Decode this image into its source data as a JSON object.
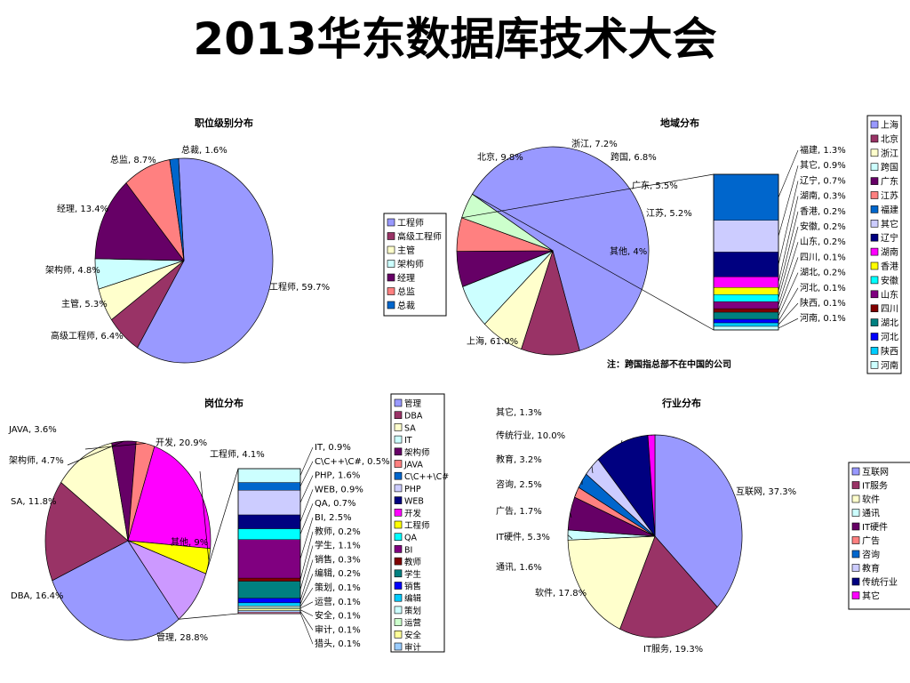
{
  "slide": {
    "title": "2013华东数据库技术大会"
  },
  "chart_data": [
    {
      "id": "level",
      "type": "pie",
      "title": "职位级别分布",
      "slices": [
        {
          "label": "工程师",
          "value": 59.7,
          "color": "#9999FF"
        },
        {
          "label": "高级工程师",
          "value": 6.4,
          "color": "#993366"
        },
        {
          "label": "主管",
          "value": 5.3,
          "color": "#FFFFCC"
        },
        {
          "label": "架构师",
          "value": 4.8,
          "color": "#CCFFFF"
        },
        {
          "label": "经理",
          "value": 13.4,
          "color": "#660066"
        },
        {
          "label": "总监",
          "value": 8.7,
          "color": "#FF8080"
        },
        {
          "label": "总裁",
          "value": 1.6,
          "color": "#0066CC"
        }
      ],
      "data_labels": [
        "工程师, 59.7%",
        "高级工程师, 6.4%",
        "主管, 5.3%",
        "架构师, 4.8%",
        "经理, 13.4%",
        "总监, 8.7%",
        "总裁, 1.6%"
      ],
      "legend": [
        "工程师",
        "高级工程师",
        "主管",
        "架构师",
        "经理",
        "总监",
        "总裁"
      ]
    },
    {
      "id": "region",
      "type": "pie",
      "title": "地域分布",
      "slices": [
        {
          "label": "上海",
          "value": 61.0,
          "color": "#9999FF"
        },
        {
          "label": "北京",
          "value": 9.8,
          "color": "#993366"
        },
        {
          "label": "浙江",
          "value": 7.2,
          "color": "#FFFFCC"
        },
        {
          "label": "跨国",
          "value": 6.8,
          "color": "#CCFFFF"
        },
        {
          "label": "广东",
          "value": 5.5,
          "color": "#660066"
        },
        {
          "label": "江苏",
          "value": 5.2,
          "color": "#FF8080"
        },
        {
          "label": "其他",
          "value": 4,
          "color": "#CCFFCC"
        }
      ],
      "data_labels": [
        "上海, 61.0%",
        "北京, 9.8%",
        "浙江, 7.2%",
        "跨国, 6.8%",
        "广东, 5.5%",
        "江苏, 5.2%",
        "其他, 4%"
      ],
      "breakdown": [
        {
          "label": "福建",
          "value": 1.3,
          "color": "#0066CC"
        },
        {
          "label": "其它",
          "value": 0.9,
          "color": "#CCCCFF"
        },
        {
          "label": "辽宁",
          "value": 0.7,
          "color": "#000080"
        },
        {
          "label": "湖南",
          "value": 0.3,
          "color": "#FF00FF"
        },
        {
          "label": "香港",
          "value": 0.2,
          "color": "#FFFF00"
        },
        {
          "label": "安徽",
          "value": 0.2,
          "color": "#00FFFF"
        },
        {
          "label": "山东",
          "value": 0.2,
          "color": "#800080"
        },
        {
          "label": "四川",
          "value": 0.1,
          "color": "#800000"
        },
        {
          "label": "湖北",
          "value": 0.2,
          "color": "#008080"
        },
        {
          "label": "河北",
          "value": 0.1,
          "color": "#0000FF"
        },
        {
          "label": "陕西",
          "value": 0.1,
          "color": "#00CCFF"
        },
        {
          "label": "河南",
          "value": 0.1,
          "color": "#CCFFFF"
        }
      ],
      "breakdown_labels": [
        "福建, 1.3%",
        "其它, 0.9%",
        "辽宁, 0.7%",
        "湖南, 0.3%",
        "香港, 0.2%",
        "安徽, 0.2%",
        "山东, 0.2%",
        "四川, 0.1%",
        "湖北, 0.2%",
        "河北, 0.1%",
        "陕西, 0.1%",
        "河南, 0.1%"
      ],
      "legend": [
        "上海",
        "北京",
        "浙江",
        "跨国",
        "广东",
        "江苏",
        "福建",
        "其它",
        "辽宁",
        "湖南",
        "香港",
        "安徽",
        "山东",
        "四川",
        "湖北",
        "河北",
        "陕西",
        "河南"
      ],
      "note": "注：跨国指总部不在中国的公司"
    },
    {
      "id": "role",
      "type": "pie",
      "title": "岗位分布",
      "slices": [
        {
          "label": "管理",
          "value": 28.8,
          "color": "#9999FF"
        },
        {
          "label": "DBA",
          "value": 16.4,
          "color": "#993366"
        },
        {
          "label": "SA",
          "value": 11.8,
          "color": "#FFFFCC"
        },
        {
          "label": "架构师",
          "value": 4.7,
          "color": "#660066"
        },
        {
          "label": "JAVA",
          "value": 3.6,
          "color": "#FF8080"
        },
        {
          "label": "开发",
          "value": 20.9,
          "color": "#FF00FF"
        },
        {
          "label": "工程师",
          "value": 4.1,
          "color": "#FFFF00"
        },
        {
          "label": "其他",
          "value": 9,
          "color": "#CC99FF"
        }
      ],
      "data_labels": [
        "管理, 28.8%",
        "DBA, 16.4%",
        "SA, 11.8%",
        "架构师, 4.7%",
        "JAVA, 3.6%",
        "开发, 20.9%",
        "工程师, 4.1%",
        "其他, 9%"
      ],
      "breakdown": [
        {
          "label": "IT",
          "value": 0.9,
          "color": "#CCFFFF"
        },
        {
          "label": "C\\C++\\C#",
          "value": 0.5,
          "color": "#0066CC"
        },
        {
          "label": "PHP",
          "value": 1.6,
          "color": "#CCCCFF"
        },
        {
          "label": "WEB",
          "value": 0.9,
          "color": "#000080"
        },
        {
          "label": "QA",
          "value": 0.7,
          "color": "#00FFFF"
        },
        {
          "label": "BI",
          "value": 2.5,
          "color": "#800080"
        },
        {
          "label": "教师",
          "value": 0.2,
          "color": "#800000"
        },
        {
          "label": "学生",
          "value": 1.1,
          "color": "#008080"
        },
        {
          "label": "销售",
          "value": 0.3,
          "color": "#0000FF"
        },
        {
          "label": "编辑",
          "value": 0.2,
          "color": "#00CCFF"
        },
        {
          "label": "策划",
          "value": 0.1,
          "color": "#CCFFFF"
        },
        {
          "label": "运营",
          "value": 0.1,
          "color": "#CCFFCC"
        },
        {
          "label": "安全",
          "value": 0.1,
          "color": "#FFFF99"
        },
        {
          "label": "审计",
          "value": 0.1,
          "color": "#99CCFF"
        },
        {
          "label": "猎头",
          "value": 0.1,
          "color": "#FF99CC"
        }
      ],
      "breakdown_labels": [
        "IT, 0.9%",
        "C\\C++\\C#, 0.5%",
        "PHP, 1.6%",
        "WEB, 0.9%",
        "QA, 0.7%",
        "BI, 2.5%",
        "教师, 0.2%",
        "学生, 1.1%",
        "销售, 0.3%",
        "编辑, 0.2%",
        "策划, 0.1%",
        "运营, 0.1%",
        "安全, 0.1%",
        "审计, 0.1%",
        "猎头, 0.1%"
      ],
      "legend": [
        "管理",
        "DBA",
        "SA",
        "IT",
        "架构师",
        "JAVA",
        "C\\C++\\C#",
        "PHP",
        "WEB",
        "开发",
        "工程师",
        "QA",
        "BI",
        "教师",
        "学生",
        "销售",
        "编辑",
        "策划",
        "运营",
        "安全",
        "审计"
      ]
    },
    {
      "id": "industry",
      "type": "pie",
      "title": "行业分布",
      "slices": [
        {
          "label": "互联网",
          "value": 37.3,
          "color": "#9999FF"
        },
        {
          "label": "IT服务",
          "value": 19.3,
          "color": "#993366"
        },
        {
          "label": "软件",
          "value": 17.8,
          "color": "#FFFFCC"
        },
        {
          "label": "通讯",
          "value": 1.6,
          "color": "#CCFFFF"
        },
        {
          "label": "IT硬件",
          "value": 5.3,
          "color": "#660066"
        },
        {
          "label": "广告",
          "value": 1.7,
          "color": "#FF8080"
        },
        {
          "label": "咨询",
          "value": 2.5,
          "color": "#0066CC"
        },
        {
          "label": "教育",
          "value": 3.2,
          "color": "#CCCCFF"
        },
        {
          "label": "传统行业",
          "value": 10.0,
          "color": "#000080"
        },
        {
          "label": "其它",
          "value": 1.3,
          "color": "#FF00FF"
        }
      ],
      "data_labels": [
        "互联网, 37.3%",
        "IT服务, 19.3%",
        "软件, 17.8%",
        "通讯, 1.6%",
        "IT硬件, 5.3%",
        "广告, 1.7%",
        "咨询, 2.5%",
        "教育, 3.2%",
        "传统行业, 10.0%",
        "其它, 1.3%"
      ],
      "legend": [
        "互联网",
        "IT服务",
        "软件",
        "通讯",
        "IT硬件",
        "广告",
        "咨询",
        "教育",
        "传统行业",
        "其它"
      ]
    }
  ]
}
